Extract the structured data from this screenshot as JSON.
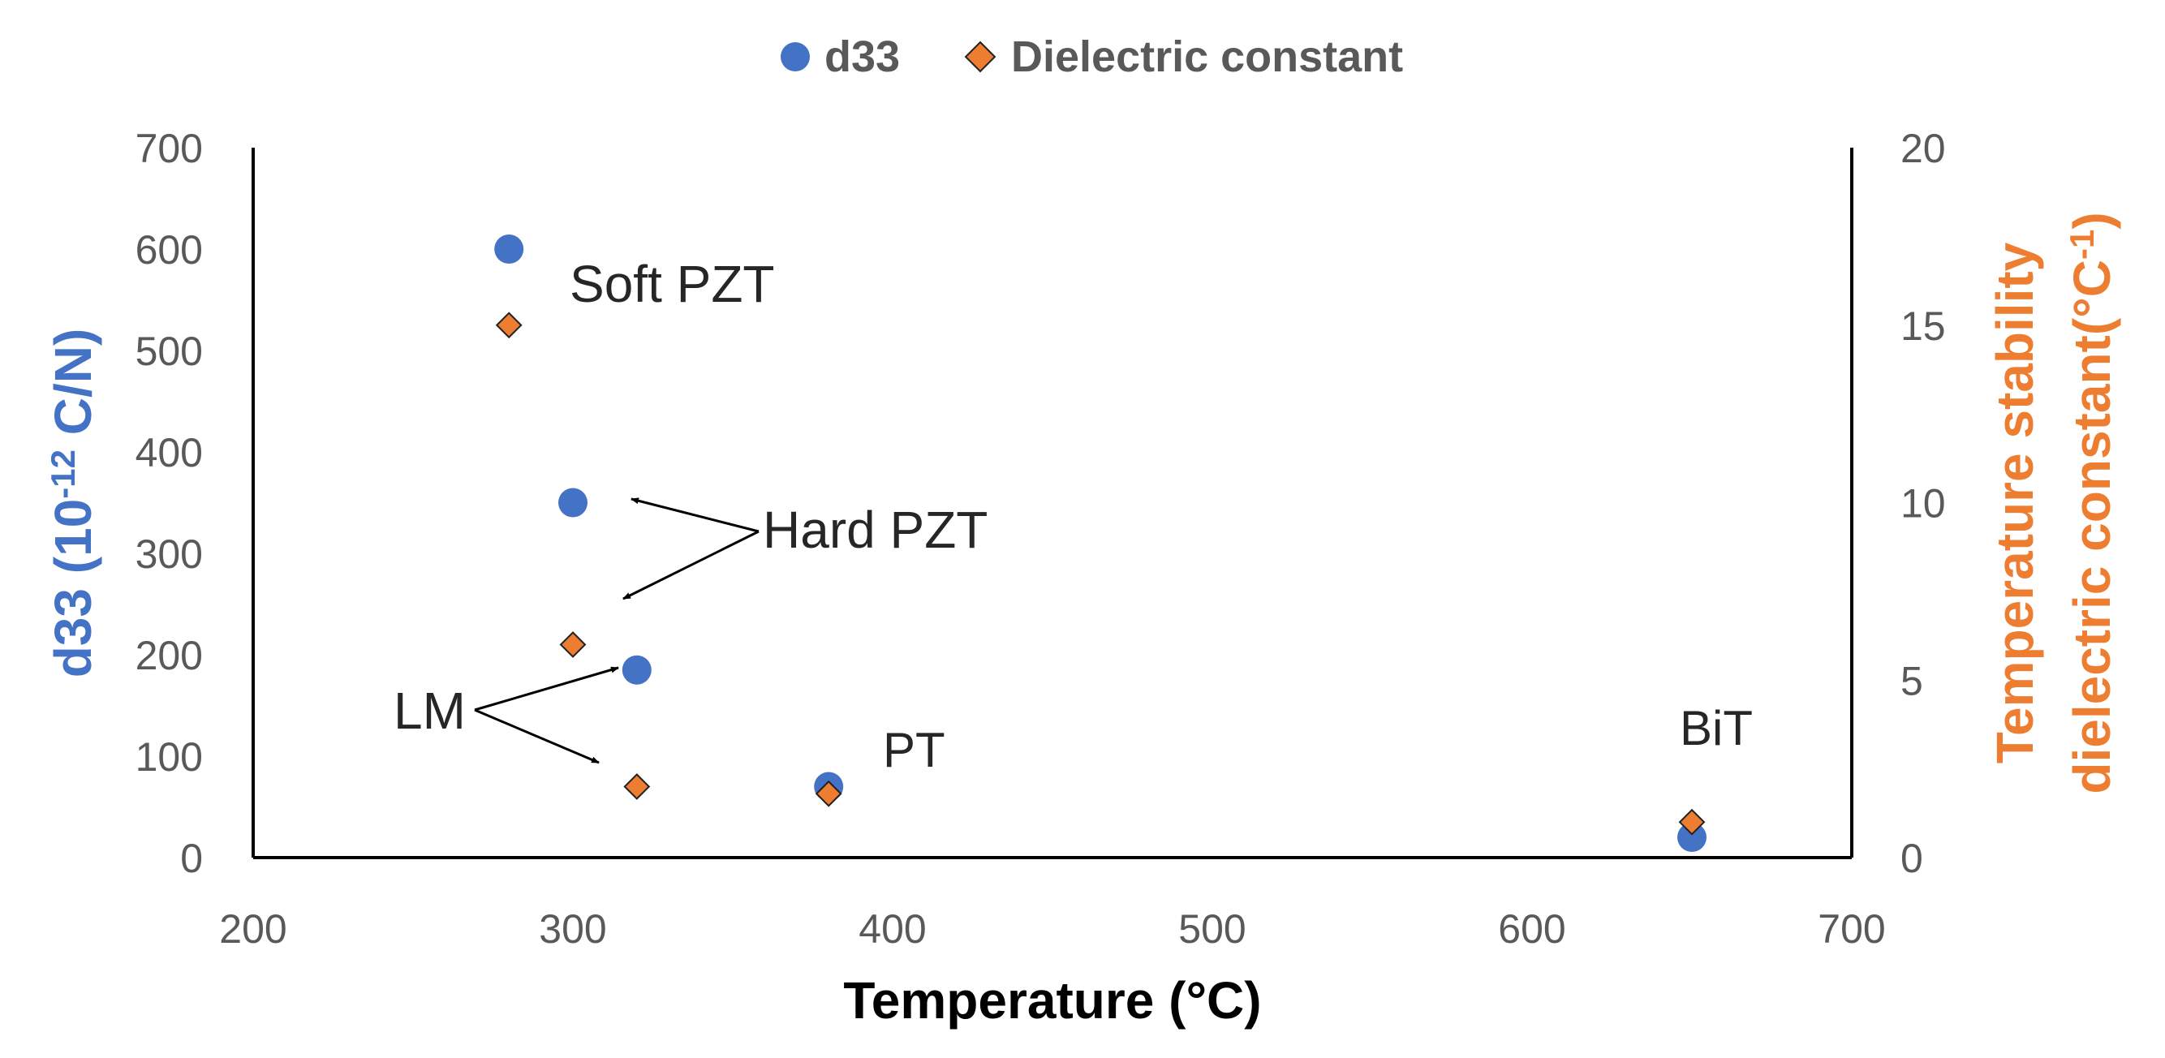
{
  "chart_data": {
    "type": "scatter",
    "title": "",
    "xlabel": "Temperature (°C)",
    "ylabel": {
      "main": "d33 (10",
      "sup": "-12",
      "tail": " C/N)"
    },
    "y2label": {
      "line1": "Temperature stability",
      "line2_main": "dielectric constant(°C",
      "line2_sup": "-1",
      "line2_tail": ")"
    },
    "xlim": [
      200,
      700
    ],
    "ylim": [
      0,
      700
    ],
    "y2lim": [
      0,
      20
    ],
    "xticks": [
      "200",
      "300",
      "400",
      "500",
      "600",
      "700"
    ],
    "yticks": [
      "0",
      "100",
      "200",
      "300",
      "400",
      "500",
      "600",
      "700"
    ],
    "y2ticks": [
      "0",
      "5",
      "10",
      "15",
      "20"
    ],
    "legend_position": "top-center",
    "series": [
      {
        "name": "d33",
        "axis": "left",
        "marker": "circle",
        "color": "#4472C4",
        "points": [
          {
            "x": 280,
            "y": 600
          },
          {
            "x": 300,
            "y": 350
          },
          {
            "x": 320,
            "y": 185
          },
          {
            "x": 380,
            "y": 70
          },
          {
            "x": 650,
            "y": 20
          }
        ]
      },
      {
        "name": "Dielectric constant",
        "axis": "right",
        "marker": "diamond",
        "color": "#ED7D31",
        "points": [
          {
            "x": 280,
            "y": 15
          },
          {
            "x": 300,
            "y": 6
          },
          {
            "x": 320,
            "y": 2
          },
          {
            "x": 380,
            "y": 1.8
          },
          {
            "x": 650,
            "y": 1
          }
        ]
      }
    ],
    "annotations": [
      "Soft PZT",
      "Hard PZT",
      "LM",
      "PT",
      "BiT"
    ],
    "colors": {
      "axis_left_title": "#4472C4",
      "axis_right_title": "#ED7D31"
    }
  }
}
